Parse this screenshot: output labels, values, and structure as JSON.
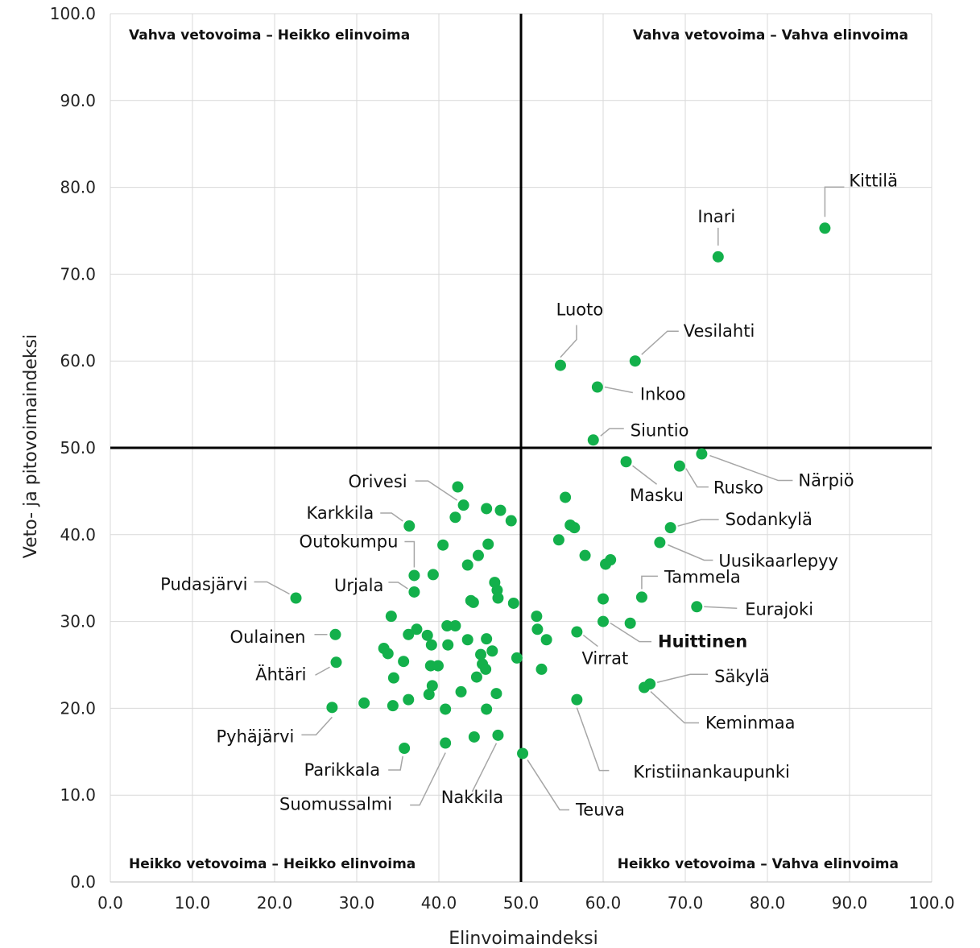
{
  "chart_data": {
    "type": "scatter",
    "xlabel": "Elinvoimaindeksi",
    "ylabel": "Veto- ja pitovoimaindeksi",
    "xlim": [
      0,
      100
    ],
    "ylim": [
      0,
      100
    ],
    "x_ticks": [
      "0.0",
      "10.0",
      "20.0",
      "30.0",
      "40.0",
      "50.0",
      "60.0",
      "70.0",
      "80.0",
      "90.0",
      "100.0"
    ],
    "y_ticks": [
      "0.0",
      "10.0",
      "20.0",
      "30.0",
      "40.0",
      "50.0",
      "60.0",
      "70.0",
      "80.0",
      "90.0",
      "100.0"
    ],
    "grid": "vertical and horizontal gridlines",
    "divider_lines": {
      "x": 50,
      "y": 50
    },
    "point_color": "#13b04b",
    "quadrant_labels": {
      "top_left": "Vahva vetovoima – Heikko elinvoima",
      "top_right": "Vahva vetovoima – Vahva elinvoima",
      "bottom_left": "Heikko vetovoima – Heikko elinvoima",
      "bottom_right": "Heikko vetovoima – Vahva elinvoima"
    },
    "labeled_points": [
      {
        "name": "Kittilä",
        "x": 87.0,
        "y": 75.3
      },
      {
        "name": "Inari",
        "x": 74.0,
        "y": 72.0
      },
      {
        "name": "Luoto",
        "x": 54.8,
        "y": 59.5
      },
      {
        "name": "Vesilahti",
        "x": 63.9,
        "y": 60.0
      },
      {
        "name": "Inkoo",
        "x": 59.3,
        "y": 57.0
      },
      {
        "name": "Siuntio",
        "x": 58.8,
        "y": 50.9
      },
      {
        "name": "Närpiö",
        "x": 72.0,
        "y": 49.3
      },
      {
        "name": "Rusko",
        "x": 69.3,
        "y": 47.9
      },
      {
        "name": "Masku",
        "x": 62.8,
        "y": 48.4
      },
      {
        "name": "Sodankylä",
        "x": 68.2,
        "y": 40.8
      },
      {
        "name": "Uusikaarlepyy",
        "x": 66.9,
        "y": 39.1
      },
      {
        "name": "Tammela",
        "x": 64.7,
        "y": 32.8
      },
      {
        "name": "Eurajoki",
        "x": 71.4,
        "y": 31.7
      },
      {
        "name": "Huittinen",
        "x": 60.0,
        "y": 30.0,
        "bold": true
      },
      {
        "name": "Virrat",
        "x": 56.8,
        "y": 28.8
      },
      {
        "name": "Säkylä",
        "x": 65.7,
        "y": 22.8
      },
      {
        "name": "Keminmaa",
        "x": 65.0,
        "y": 22.4
      },
      {
        "name": "Kristiinankaupunki",
        "x": 56.8,
        "y": 21.0
      },
      {
        "name": "Teuva",
        "x": 50.2,
        "y": 14.8
      },
      {
        "name": "Nakkila",
        "x": 47.2,
        "y": 16.9
      },
      {
        "name": "Suomussalmi",
        "x": 40.8,
        "y": 16.0
      },
      {
        "name": "Parikkala",
        "x": 35.8,
        "y": 15.4
      },
      {
        "name": "Pyhäjärvi",
        "x": 27.0,
        "y": 20.1
      },
      {
        "name": "Ähtäri",
        "x": 27.5,
        "y": 25.3
      },
      {
        "name": "Oulainen",
        "x": 27.4,
        "y": 28.5
      },
      {
        "name": "Pudasjärvi",
        "x": 22.6,
        "y": 32.7
      },
      {
        "name": "Urjala",
        "x": 37.0,
        "y": 33.4
      },
      {
        "name": "Outokumpu",
        "x": 37.0,
        "y": 35.3
      },
      {
        "name": "Karkkila",
        "x": 36.4,
        "y": 41.0
      },
      {
        "name": "Orivesi",
        "x": 43.0,
        "y": 43.4
      }
    ],
    "other_points": [
      {
        "x": 42.3,
        "y": 45.5
      },
      {
        "x": 42.0,
        "y": 42.0
      },
      {
        "x": 45.8,
        "y": 43.0
      },
      {
        "x": 47.5,
        "y": 42.8
      },
      {
        "x": 48.8,
        "y": 41.6
      },
      {
        "x": 40.5,
        "y": 38.8
      },
      {
        "x": 46.0,
        "y": 38.9
      },
      {
        "x": 44.8,
        "y": 37.6
      },
      {
        "x": 43.5,
        "y": 36.5
      },
      {
        "x": 39.3,
        "y": 35.4
      },
      {
        "x": 46.8,
        "y": 34.5
      },
      {
        "x": 47.1,
        "y": 33.6
      },
      {
        "x": 47.2,
        "y": 32.7
      },
      {
        "x": 43.9,
        "y": 32.4
      },
      {
        "x": 44.2,
        "y": 32.2
      },
      {
        "x": 49.1,
        "y": 32.1
      },
      {
        "x": 34.2,
        "y": 30.6
      },
      {
        "x": 41.0,
        "y": 29.5
      },
      {
        "x": 42.0,
        "y": 29.5
      },
      {
        "x": 37.3,
        "y": 29.1
      },
      {
        "x": 36.3,
        "y": 28.5
      },
      {
        "x": 38.6,
        "y": 28.4
      },
      {
        "x": 39.1,
        "y": 27.3
      },
      {
        "x": 41.1,
        "y": 27.3
      },
      {
        "x": 43.5,
        "y": 27.9
      },
      {
        "x": 45.8,
        "y": 28.0
      },
      {
        "x": 46.5,
        "y": 26.6
      },
      {
        "x": 45.1,
        "y": 26.2
      },
      {
        "x": 33.3,
        "y": 26.9
      },
      {
        "x": 33.8,
        "y": 26.3
      },
      {
        "x": 35.7,
        "y": 25.4
      },
      {
        "x": 39.0,
        "y": 24.9
      },
      {
        "x": 39.9,
        "y": 24.9
      },
      {
        "x": 45.3,
        "y": 25.1
      },
      {
        "x": 45.7,
        "y": 24.5
      },
      {
        "x": 49.5,
        "y": 25.8
      },
      {
        "x": 34.5,
        "y": 23.5
      },
      {
        "x": 44.6,
        "y": 23.6
      },
      {
        "x": 39.2,
        "y": 22.6
      },
      {
        "x": 38.8,
        "y": 21.6
      },
      {
        "x": 42.7,
        "y": 21.9
      },
      {
        "x": 47.0,
        "y": 21.7
      },
      {
        "x": 36.3,
        "y": 21.0
      },
      {
        "x": 30.9,
        "y": 20.6
      },
      {
        "x": 34.4,
        "y": 20.3
      },
      {
        "x": 40.8,
        "y": 19.9
      },
      {
        "x": 45.8,
        "y": 19.9
      },
      {
        "x": 44.3,
        "y": 16.7
      },
      {
        "x": 55.4,
        "y": 44.3
      },
      {
        "x": 56.0,
        "y": 41.1
      },
      {
        "x": 56.5,
        "y": 40.8
      },
      {
        "x": 54.6,
        "y": 39.4
      },
      {
        "x": 57.8,
        "y": 37.6
      },
      {
        "x": 60.9,
        "y": 37.1
      },
      {
        "x": 60.3,
        "y": 36.6
      },
      {
        "x": 60.0,
        "y": 32.6
      },
      {
        "x": 51.9,
        "y": 30.6
      },
      {
        "x": 52.0,
        "y": 29.1
      },
      {
        "x": 63.3,
        "y": 29.8
      },
      {
        "x": 53.1,
        "y": 27.9
      },
      {
        "x": 52.5,
        "y": 24.5
      }
    ]
  }
}
